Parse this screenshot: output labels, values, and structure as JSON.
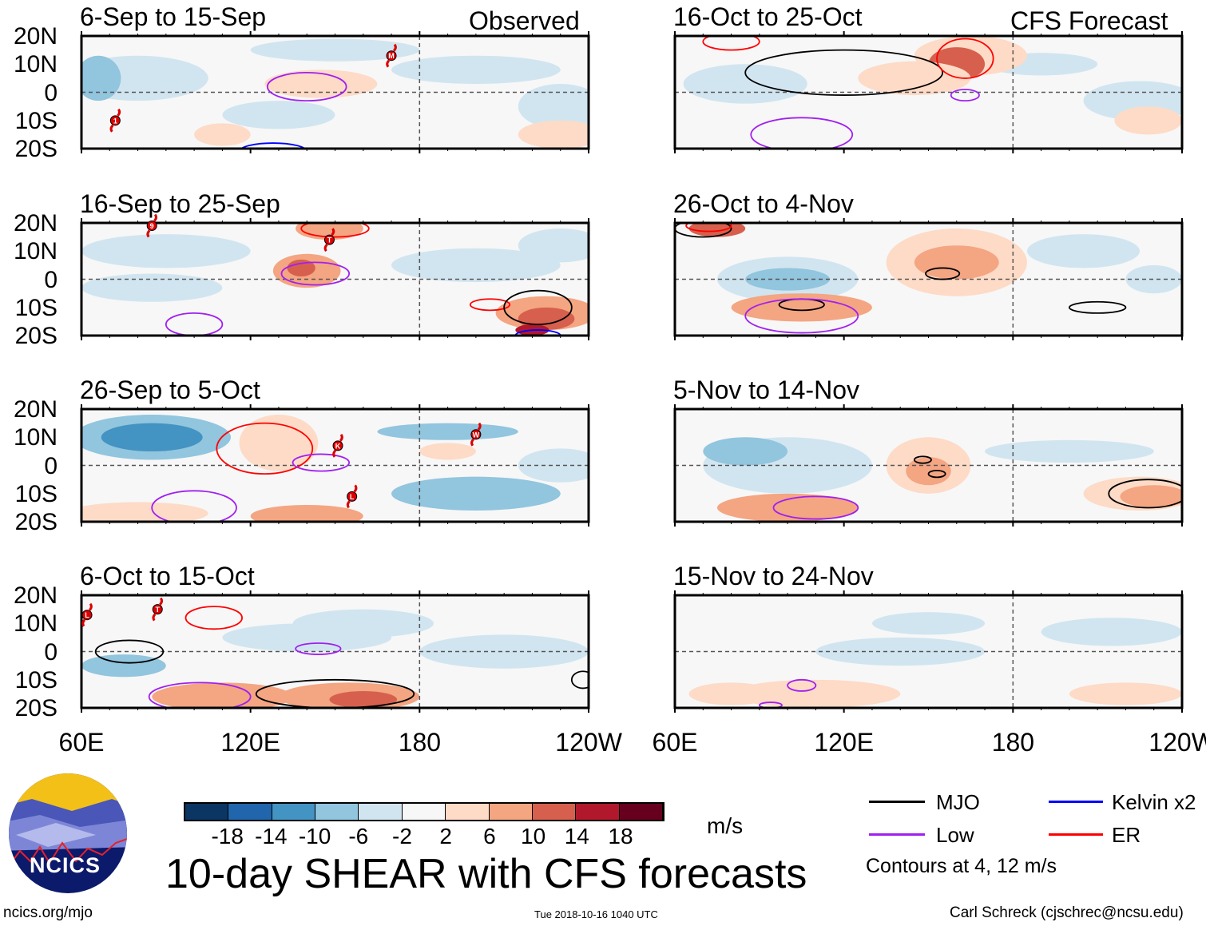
{
  "title": "10-day SHEAR with CFS forecasts",
  "observed_label": "Observed",
  "forecast_label": "CFS Forecast",
  "panels": [
    {
      "title": "6-Sep to 15-Sep",
      "storms": [
        "1",
        "M"
      ]
    },
    {
      "title": "16-Sep to 25-Sep",
      "storms": [
        "9",
        "T"
      ]
    },
    {
      "title": "26-Sep to 5-Oct",
      "storms": [
        "K",
        "W",
        "L"
      ]
    },
    {
      "title": "6-Oct to 15-Oct",
      "storms": [
        "L",
        "T"
      ]
    },
    {
      "title": "16-Oct to 25-Oct",
      "storms": []
    },
    {
      "title": "26-Oct to 4-Nov",
      "storms": []
    },
    {
      "title": "5-Nov to 14-Nov",
      "storms": []
    },
    {
      "title": "15-Nov to 24-Nov",
      "storms": []
    }
  ],
  "y_ticks": [
    "20N",
    "10N",
    "0",
    "10S",
    "20S"
  ],
  "x_ticks": [
    "60E",
    "120E",
    "180",
    "120W"
  ],
  "colorbar": {
    "unit": "m/s",
    "labels": [
      "-18",
      "-14",
      "-10",
      "-6",
      "-2",
      "2",
      "6",
      "10",
      "14",
      "18"
    ],
    "colors": [
      "#0b3563",
      "#2166ac",
      "#4393c3",
      "#92c5de",
      "#d1e5f0",
      "#f7f7f7",
      "#fddbc7",
      "#f4a582",
      "#d6604d",
      "#b2182b",
      "#67001f"
    ]
  },
  "legend": {
    "items": [
      {
        "label": "MJO",
        "color": "#000000"
      },
      {
        "label": "Kelvin x2",
        "color": "#0000ff"
      },
      {
        "label": "Low",
        "color": "#a020f0"
      },
      {
        "label": "ER",
        "color": "#ff0000"
      }
    ],
    "note": "Contours at 4, 12 m/s"
  },
  "logo_text": "NCICS",
  "footer": {
    "url": "ncics.org/mjo",
    "timestamp": "Tue 2018-10-16 1040 UTC",
    "author": "Carl Schreck (cjschrec@ncsu.edu)"
  }
}
